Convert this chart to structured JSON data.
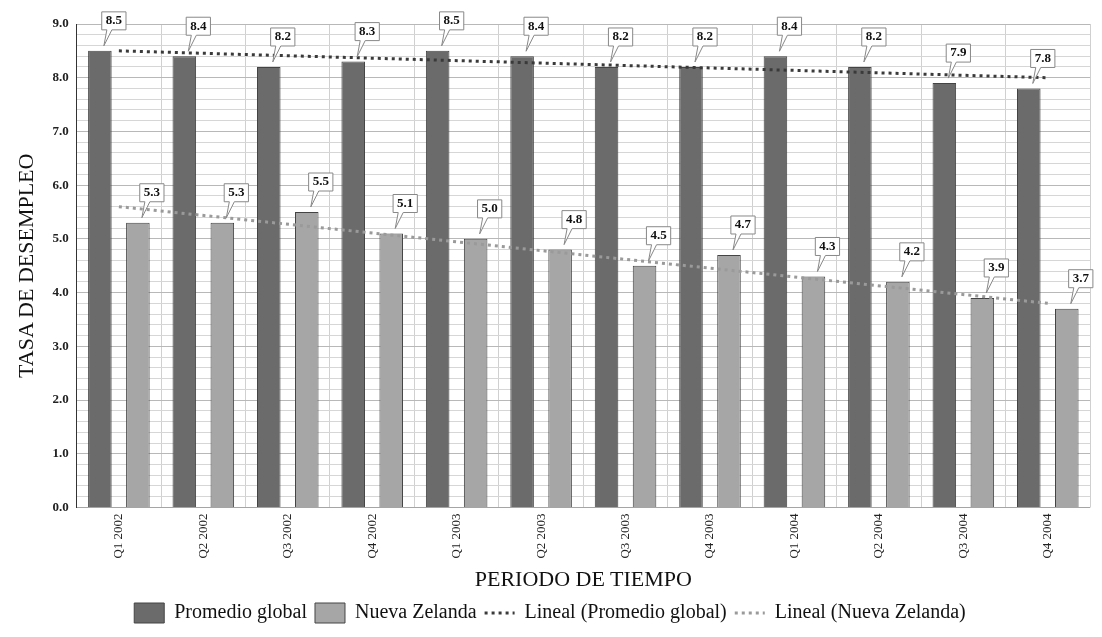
{
  "chart_data": {
    "type": "bar",
    "xlabel": "PERIODO DE TIEMPO",
    "ylabel": "TASA DE DESEMPLEO",
    "categories": [
      "Q1 2002",
      "Q2 2002",
      "Q3 2002",
      "Q4 2002",
      "Q1 2003",
      "Q2 2003",
      "Q3 2003",
      "Q4 2003",
      "Q1 2004",
      "Q2 2004",
      "Q3 2004",
      "Q4 2004"
    ],
    "series": [
      {
        "name": "Promedio global",
        "color": "#6b6b6b",
        "values": [
          8.5,
          8.4,
          8.2,
          8.3,
          8.5,
          8.4,
          8.2,
          8.2,
          8.4,
          8.2,
          7.9,
          7.8
        ],
        "value_labels": [
          "8.5",
          "8.4",
          "8.2",
          "8.3",
          "8.5",
          "8.4",
          "8.2",
          "8.2",
          "8.4",
          "8.2",
          "7.9",
          "7.8"
        ]
      },
      {
        "name": "Nueva Zelanda",
        "color": "#a6a6a6",
        "values": [
          5.3,
          5.3,
          5.5,
          5.1,
          5.0,
          4.8,
          4.5,
          4.7,
          4.3,
          4.2,
          3.9,
          3.7
        ],
        "value_labels": [
          "5.3",
          "5.3",
          "5.5",
          "5.1",
          "5.0",
          "4.8",
          "4.5",
          "4.7",
          "4.3",
          "4.2",
          "3.9",
          "3.7"
        ]
      },
      {
        "name": "Lineal (Promedio global)",
        "type": "line",
        "color": "#3a3a3a",
        "line_style": "dotted",
        "marker": "none",
        "values": [
          8.5,
          null,
          null,
          null,
          null,
          null,
          null,
          null,
          null,
          null,
          null,
          8.0
        ]
      },
      {
        "name": "Lineal (Nueva Zelanda)",
        "type": "line",
        "color": "#9a9a9a",
        "line_style": "dotted",
        "marker": "none",
        "values": [
          5.6,
          null,
          null,
          null,
          null,
          null,
          null,
          null,
          null,
          null,
          null,
          3.8
        ]
      }
    ],
    "ylim": [
      0,
      9
    ],
    "yticks": [
      {
        "value": 0,
        "label": "0.0"
      },
      {
        "value": 0.2,
        "label": null
      },
      {
        "value": 0.4,
        "label": null
      },
      {
        "value": 0.6,
        "label": null
      },
      {
        "value": 0.8,
        "label": null
      },
      {
        "value": 1,
        "label": "1.0"
      },
      {
        "value": 1.2,
        "label": null
      },
      {
        "value": 1.4,
        "label": null
      },
      {
        "value": 1.6,
        "label": null
      },
      {
        "value": 1.8,
        "label": null
      },
      {
        "value": 2,
        "label": "2.0"
      },
      {
        "value": 2.2,
        "label": null
      },
      {
        "value": 2.4,
        "label": null
      },
      {
        "value": 2.6,
        "label": null
      },
      {
        "value": 2.8,
        "label": null
      },
      {
        "value": 3,
        "label": "3.0"
      },
      {
        "value": 3.2,
        "label": null
      },
      {
        "value": 3.4,
        "label": null
      },
      {
        "value": 3.6,
        "label": null
      },
      {
        "value": 3.8,
        "label": null
      },
      {
        "value": 4,
        "label": "4.0"
      },
      {
        "value": 4.2,
        "label": null
      },
      {
        "value": 4.4,
        "label": null
      },
      {
        "value": 4.6,
        "label": null
      },
      {
        "value": 4.8,
        "label": null
      },
      {
        "value": 5,
        "label": "5.0"
      },
      {
        "value": 5.2,
        "label": null
      },
      {
        "value": 5.4,
        "label": null
      },
      {
        "value": 5.6,
        "label": null
      },
      {
        "value": 5.8,
        "label": null
      },
      {
        "value": 6,
        "label": "6.0"
      },
      {
        "value": 6.2,
        "label": null
      },
      {
        "value": 6.4,
        "label": null
      },
      {
        "value": 6.6,
        "label": null
      },
      {
        "value": 6.8,
        "label": null
      },
      {
        "value": 7,
        "label": "7.0"
      },
      {
        "value": 7.2,
        "label": null
      },
      {
        "value": 7.4,
        "label": null
      },
      {
        "value": 7.6,
        "label": null
      },
      {
        "value": 7.8,
        "label": null
      },
      {
        "value": 8,
        "label": "8.0"
      },
      {
        "value": 8.2,
        "label": null
      },
      {
        "value": 8.4,
        "label": null
      },
      {
        "value": 8.6,
        "label": null
      },
      {
        "value": 8.8,
        "label": null
      },
      {
        "value": 9,
        "label": "9.0"
      }
    ],
    "grid": true,
    "legend": "bottom"
  }
}
